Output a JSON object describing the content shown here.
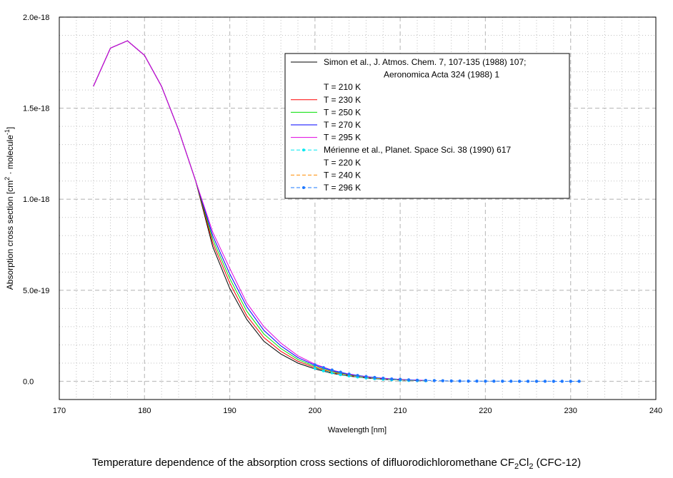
{
  "chart_data": {
    "type": "line",
    "xlabel": "Wavelength [nm]",
    "ylabel_parts": [
      "Absorption cross section [cm",
      "2",
      " · molecule",
      "-1",
      "]"
    ],
    "xlim": [
      170,
      240
    ],
    "ylim": [
      -0.1,
      2.0
    ],
    "y_unit_scale": 1e-18,
    "xticks": [
      170,
      180,
      190,
      200,
      210,
      220,
      230,
      240
    ],
    "xtick_labels": [
      "170",
      "180",
      "190",
      "200",
      "210",
      "220",
      "230",
      "240"
    ],
    "yticks": [
      0.0,
      0.5,
      1.0,
      1.5,
      2.0
    ],
    "ytick_labels": [
      "0.0",
      "5.0e-19",
      "1.0e-18",
      "1.5e-18",
      "2.0e-18"
    ],
    "grid": true,
    "legend_placement": "top-right",
    "legend": [
      {
        "label": "Simon et al., J. Atmos. Chem. 7, 107-135 (1988) 107;",
        "line": "#000000",
        "dashed": false
      },
      {
        "label": "Aeronomica Acta 324 (1988) 1",
        "line": null,
        "indent": true
      },
      {
        "label": "T = 210 K",
        "line": null
      },
      {
        "label": "T = 230 K",
        "line": "#ff0000",
        "dashed": false
      },
      {
        "label": "T = 250 K",
        "line": "#00e000",
        "dashed": false
      },
      {
        "label": "T = 270 K",
        "line": "#0000ff",
        "dashed": false
      },
      {
        "label": "T = 295 K",
        "line": "#e000e0",
        "dashed": false
      },
      {
        "label": "Mérienne et al., Planet. Space Sci. 38 (1990) 617",
        "line": "#00e8f0",
        "dashed": true,
        "marker": true
      },
      {
        "label": "T = 220 K",
        "line": null
      },
      {
        "label": "T = 240 K",
        "line": "#ff8c00",
        "dashed": true
      },
      {
        "label": "T = 296 K",
        "line": "#1e78ff",
        "dashed": true,
        "marker": true
      }
    ],
    "series": [
      {
        "name": "Simon T = 210 K",
        "color": "#000000",
        "dashed": false,
        "x": [
          174,
          176,
          178,
          180,
          182,
          184,
          186,
          188,
          190,
          192,
          194,
          196,
          198,
          200,
          202,
          204,
          206,
          208,
          210,
          212,
          213
        ],
        "y": [
          1.62,
          1.83,
          1.87,
          1.79,
          1.62,
          1.38,
          1.1,
          0.74,
          0.51,
          0.34,
          0.22,
          0.15,
          0.1,
          0.068,
          0.044,
          0.028,
          0.018,
          0.011,
          0.007,
          0.004,
          0.003
        ]
      },
      {
        "name": "Simon T = 230 K",
        "color": "#ff0000",
        "dashed": false,
        "x": [
          174,
          176,
          178,
          180,
          182,
          184,
          186,
          188,
          190,
          192,
          194,
          196,
          198,
          200,
          202,
          204,
          206,
          208,
          210,
          212,
          213
        ],
        "y": [
          1.62,
          1.83,
          1.87,
          1.79,
          1.62,
          1.38,
          1.1,
          0.76,
          0.54,
          0.36,
          0.24,
          0.165,
          0.11,
          0.075,
          0.048,
          0.031,
          0.02,
          0.013,
          0.008,
          0.005,
          0.004
        ]
      },
      {
        "name": "Simon T = 250 K",
        "color": "#00e000",
        "dashed": false,
        "x": [
          174,
          176,
          178,
          180,
          182,
          184,
          186,
          188,
          190,
          192,
          194,
          196,
          198,
          200,
          202,
          204,
          206,
          208,
          210,
          212,
          213
        ],
        "y": [
          1.62,
          1.83,
          1.87,
          1.79,
          1.62,
          1.38,
          1.1,
          0.78,
          0.565,
          0.385,
          0.26,
          0.18,
          0.12,
          0.081,
          0.053,
          0.034,
          0.022,
          0.014,
          0.009,
          0.0055,
          0.004
        ]
      },
      {
        "name": "Simon T = 270 K",
        "color": "#0000ff",
        "dashed": false,
        "x": [
          174,
          176,
          178,
          180,
          182,
          184,
          186,
          188,
          190,
          192,
          194,
          196,
          198,
          200,
          202,
          204,
          206,
          208,
          210,
          212,
          213
        ],
        "y": [
          1.62,
          1.83,
          1.87,
          1.79,
          1.62,
          1.38,
          1.1,
          0.8,
          0.59,
          0.41,
          0.28,
          0.195,
          0.13,
          0.088,
          0.058,
          0.037,
          0.024,
          0.015,
          0.01,
          0.006,
          0.005
        ]
      },
      {
        "name": "Simon T = 295 K",
        "color": "#e000e0",
        "dashed": false,
        "x": [
          174,
          176,
          178,
          180,
          182,
          184,
          186,
          188,
          190,
          192,
          194,
          196,
          198,
          200,
          202,
          204,
          206,
          208,
          210,
          212,
          213
        ],
        "y": [
          1.62,
          1.83,
          1.87,
          1.79,
          1.62,
          1.38,
          1.1,
          0.82,
          0.62,
          0.43,
          0.3,
          0.21,
          0.14,
          0.094,
          0.062,
          0.04,
          0.026,
          0.017,
          0.011,
          0.007,
          0.005
        ]
      },
      {
        "name": "Mérienne T = 220 K",
        "color": "#00e8f0",
        "dashed": true,
        "marker": true,
        "x": [
          200,
          201,
          202,
          203,
          204,
          205,
          206,
          207,
          208,
          209,
          210,
          211,
          212,
          213
        ],
        "y": [
          0.072,
          0.058,
          0.047,
          0.037,
          0.03,
          0.024,
          0.019,
          0.015,
          0.012,
          0.009,
          0.007,
          0.005,
          0.004,
          0.003
        ]
      },
      {
        "name": "Mérienne T = 240 K",
        "color": "#ff8c00",
        "dashed": true,
        "x": [
          200,
          201,
          202,
          203,
          204,
          205,
          206,
          207,
          208,
          209,
          210,
          211,
          212,
          213
        ],
        "y": [
          0.08,
          0.065,
          0.053,
          0.042,
          0.034,
          0.027,
          0.022,
          0.017,
          0.014,
          0.011,
          0.008,
          0.006,
          0.005,
          0.004
        ]
      },
      {
        "name": "Mérienne T = 296 K",
        "color": "#1e78ff",
        "dashed": true,
        "marker": true,
        "x": [
          200,
          201,
          202,
          203,
          204,
          205,
          206,
          207,
          208,
          209,
          210,
          211,
          212,
          213,
          214,
          215,
          216,
          217,
          218,
          219,
          220,
          221,
          222,
          223,
          224,
          225,
          226,
          227,
          228,
          229,
          230,
          231
        ],
        "y": [
          0.09,
          0.075,
          0.062,
          0.05,
          0.04,
          0.032,
          0.026,
          0.021,
          0.017,
          0.013,
          0.011,
          0.008,
          0.006,
          0.005,
          0.004,
          0.003,
          0.002,
          0.0016,
          0.0012,
          0.001,
          0.0007,
          0.0006,
          0.0005,
          0.0004,
          0.0003,
          0.0003,
          0.0002,
          0.0002,
          0.0002,
          0.0001,
          0.0001,
          0.0001
        ]
      }
    ]
  },
  "caption": {
    "text": "Temperature dependence of the absorption cross sections of difluorodichloromethane CF",
    "sub1": "2",
    "mid": "Cl",
    "sub2": "2",
    "tail": " (CFC-12)"
  }
}
